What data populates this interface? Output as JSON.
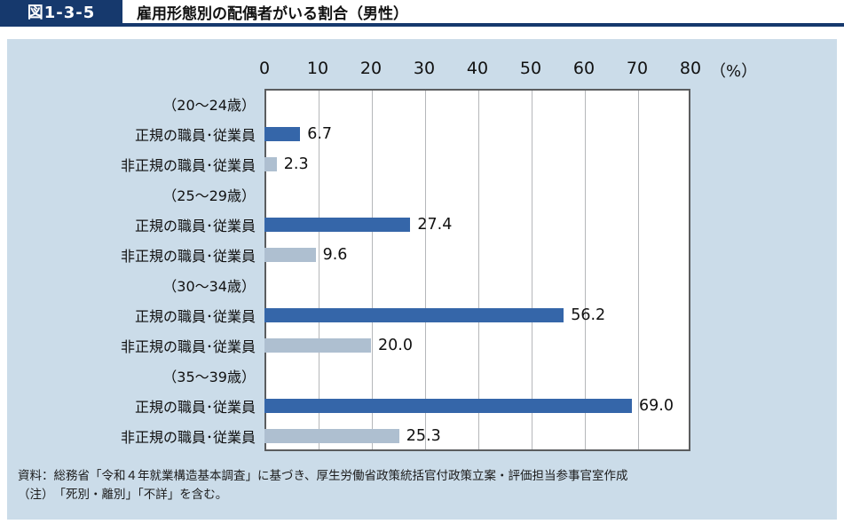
{
  "header": {
    "figure_label": "図1-3-5",
    "title": "雇用形態別の配偶者がいる割合（男性）"
  },
  "chart_data": {
    "type": "bar",
    "orientation": "horizontal",
    "title": "雇用形態別の配偶者がいる割合（男性）",
    "unit_label": "（%）",
    "xlim": [
      0,
      80
    ],
    "xticks": [
      0,
      10,
      20,
      30,
      40,
      50,
      60,
      70,
      80
    ],
    "grid": true,
    "colors": {
      "regular": "#3566a9",
      "non_regular": "#aebfd0"
    },
    "series_legend": [
      {
        "key": "regular",
        "label": "正規の職員･従業員"
      },
      {
        "key": "non_regular",
        "label": "非正規の職員･従業員"
      }
    ],
    "groups": [
      {
        "age": "（20～24歳）",
        "rows": [
          {
            "label": "正規の職員･従業員",
            "series": "regular",
            "value": 6.7
          },
          {
            "label": "非正規の職員･従業員",
            "series": "non_regular",
            "value": 2.3
          }
        ]
      },
      {
        "age": "（25～29歳）",
        "rows": [
          {
            "label": "正規の職員･従業員",
            "series": "regular",
            "value": 27.4
          },
          {
            "label": "非正規の職員･従業員",
            "series": "non_regular",
            "value": 9.6
          }
        ]
      },
      {
        "age": "（30～34歳）",
        "rows": [
          {
            "label": "正規の職員･従業員",
            "series": "regular",
            "value": 56.2
          },
          {
            "label": "非正規の職員･従業員",
            "series": "non_regular",
            "value": 20.0
          }
        ]
      },
      {
        "age": "（35～39歳）",
        "rows": [
          {
            "label": "正規の職員･従業員",
            "series": "regular",
            "value": 69.0
          },
          {
            "label": "非正規の職員･従業員",
            "series": "non_regular",
            "value": 25.3
          }
        ]
      }
    ]
  },
  "footer": {
    "source": "資料：総務省「令和４年就業構造基本調査」に基づき、厚生労働省政策統括官付政策立案・評価担当参事官室作成",
    "note": "（注）　「死別・離別」「不詳」を含む。"
  }
}
